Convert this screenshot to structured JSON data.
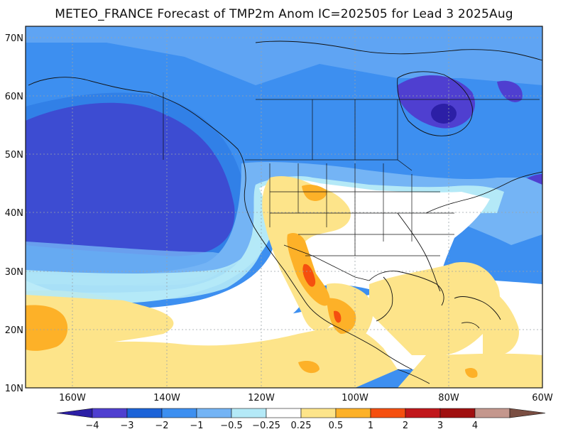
{
  "title": "METEO_FRANCE Forecast of TMP2m Anom IC=202505 for Lead 3 2025Aug",
  "lat_labels": [
    "70N",
    "60N",
    "50N",
    "40N",
    "30N",
    "20N",
    "10N"
  ],
  "lon_labels": [
    "160W",
    "140W",
    "120W",
    "100W",
    "80W",
    "60W"
  ],
  "colorbar_labels": [
    "-4",
    "-3",
    "-2",
    "-1",
    "-0.5",
    "-0.25",
    "0.25",
    "0.5",
    "1",
    "2",
    "3",
    "4"
  ],
  "colorbar_colors": [
    "#2c1fa6",
    "#4f3fd0",
    "#1c63d8",
    "#3d8ff0",
    "#74b4f5",
    "#b4e9f7",
    "#ffffff",
    "#fde48a",
    "#fdb128",
    "#f54f0f",
    "#c1171b",
    "#a01010",
    "#c4978d",
    "#7a4e42"
  ],
  "map": {
    "lat_range": [
      10,
      72
    ],
    "lon_range": [
      -170,
      -60
    ]
  }
}
